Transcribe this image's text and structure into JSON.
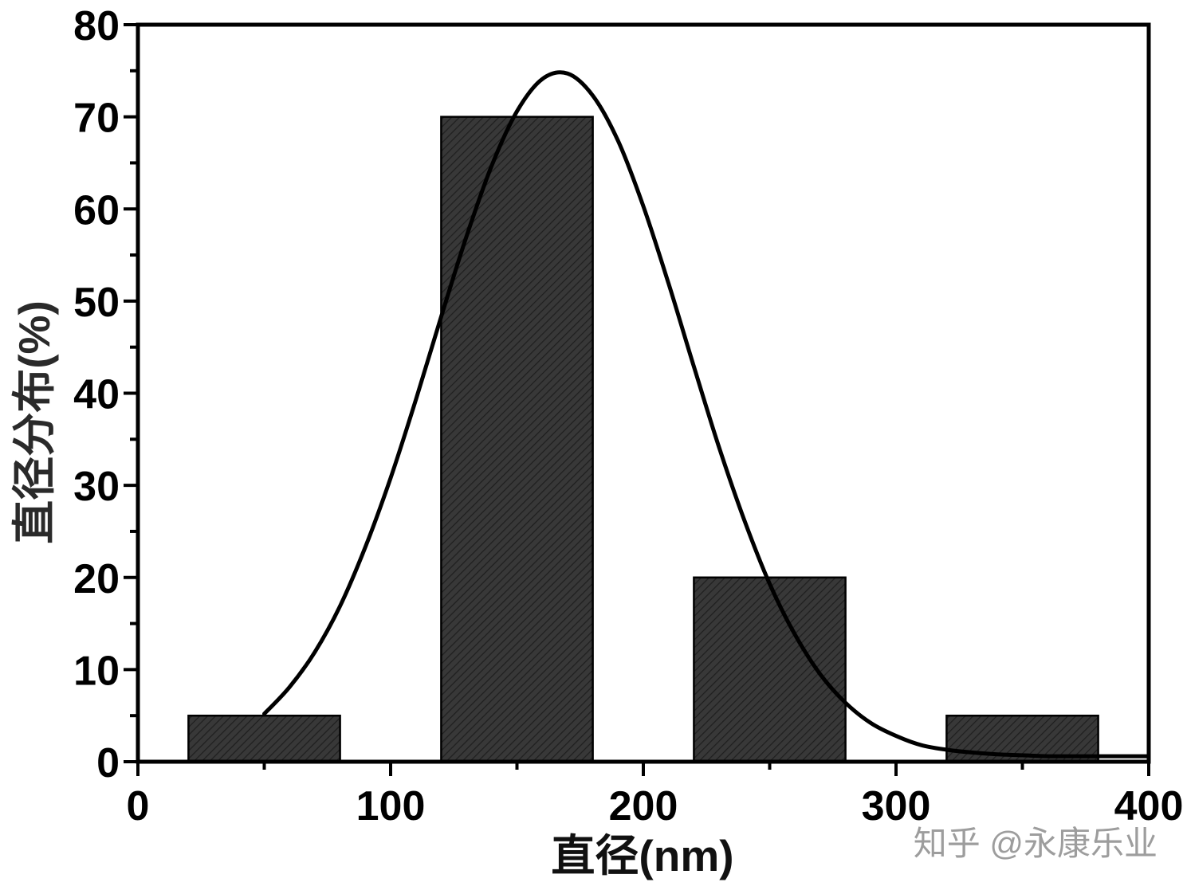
{
  "chart_data": {
    "type": "bar",
    "xlabel": "直径(nm)",
    "ylabel": "直径分布(%)",
    "xlim": [
      0,
      400
    ],
    "ylim": [
      0,
      80
    ],
    "xticks": [
      0,
      100,
      200,
      300,
      400
    ],
    "yticks": [
      0,
      10,
      20,
      30,
      40,
      50,
      60,
      70,
      80
    ],
    "grid": false,
    "series": [
      {
        "type": "bar",
        "bins": [
          [
            20,
            80
          ],
          [
            120,
            180
          ],
          [
            220,
            280
          ],
          [
            320,
            380
          ]
        ],
        "values": [
          5,
          70,
          20,
          5
        ]
      },
      {
        "type": "line",
        "x": [
          50,
          60,
          70,
          80,
          90,
          100,
          110,
          120,
          130,
          140,
          150,
          160,
          170,
          180,
          190,
          200,
          210,
          220,
          230,
          240,
          250,
          260,
          270,
          280,
          290,
          300,
          310,
          320,
          330,
          340,
          350,
          360,
          370,
          380,
          390,
          400
        ],
        "y": [
          5.2,
          8.1,
          11.9,
          16.9,
          23.3,
          30.8,
          39.3,
          48.3,
          57.0,
          64.7,
          70.6,
          74.1,
          74.7,
          72.3,
          67.4,
          60.3,
          51.9,
          42.9,
          34.1,
          26.2,
          19.3,
          13.8,
          9.5,
          6.4,
          4.2,
          2.8,
          1.8,
          1.3,
          1.0,
          0.8,
          0.7,
          0.6,
          0.6,
          0.6,
          0.6,
          0.6
        ]
      }
    ],
    "colors": {
      "bar_fill": "#383838",
      "bar_hatch": "#1f1f1f",
      "bar_edge": "#000000",
      "line": "#000000",
      "axes": "#000000"
    }
  },
  "watermark": "知乎 @永康乐业"
}
